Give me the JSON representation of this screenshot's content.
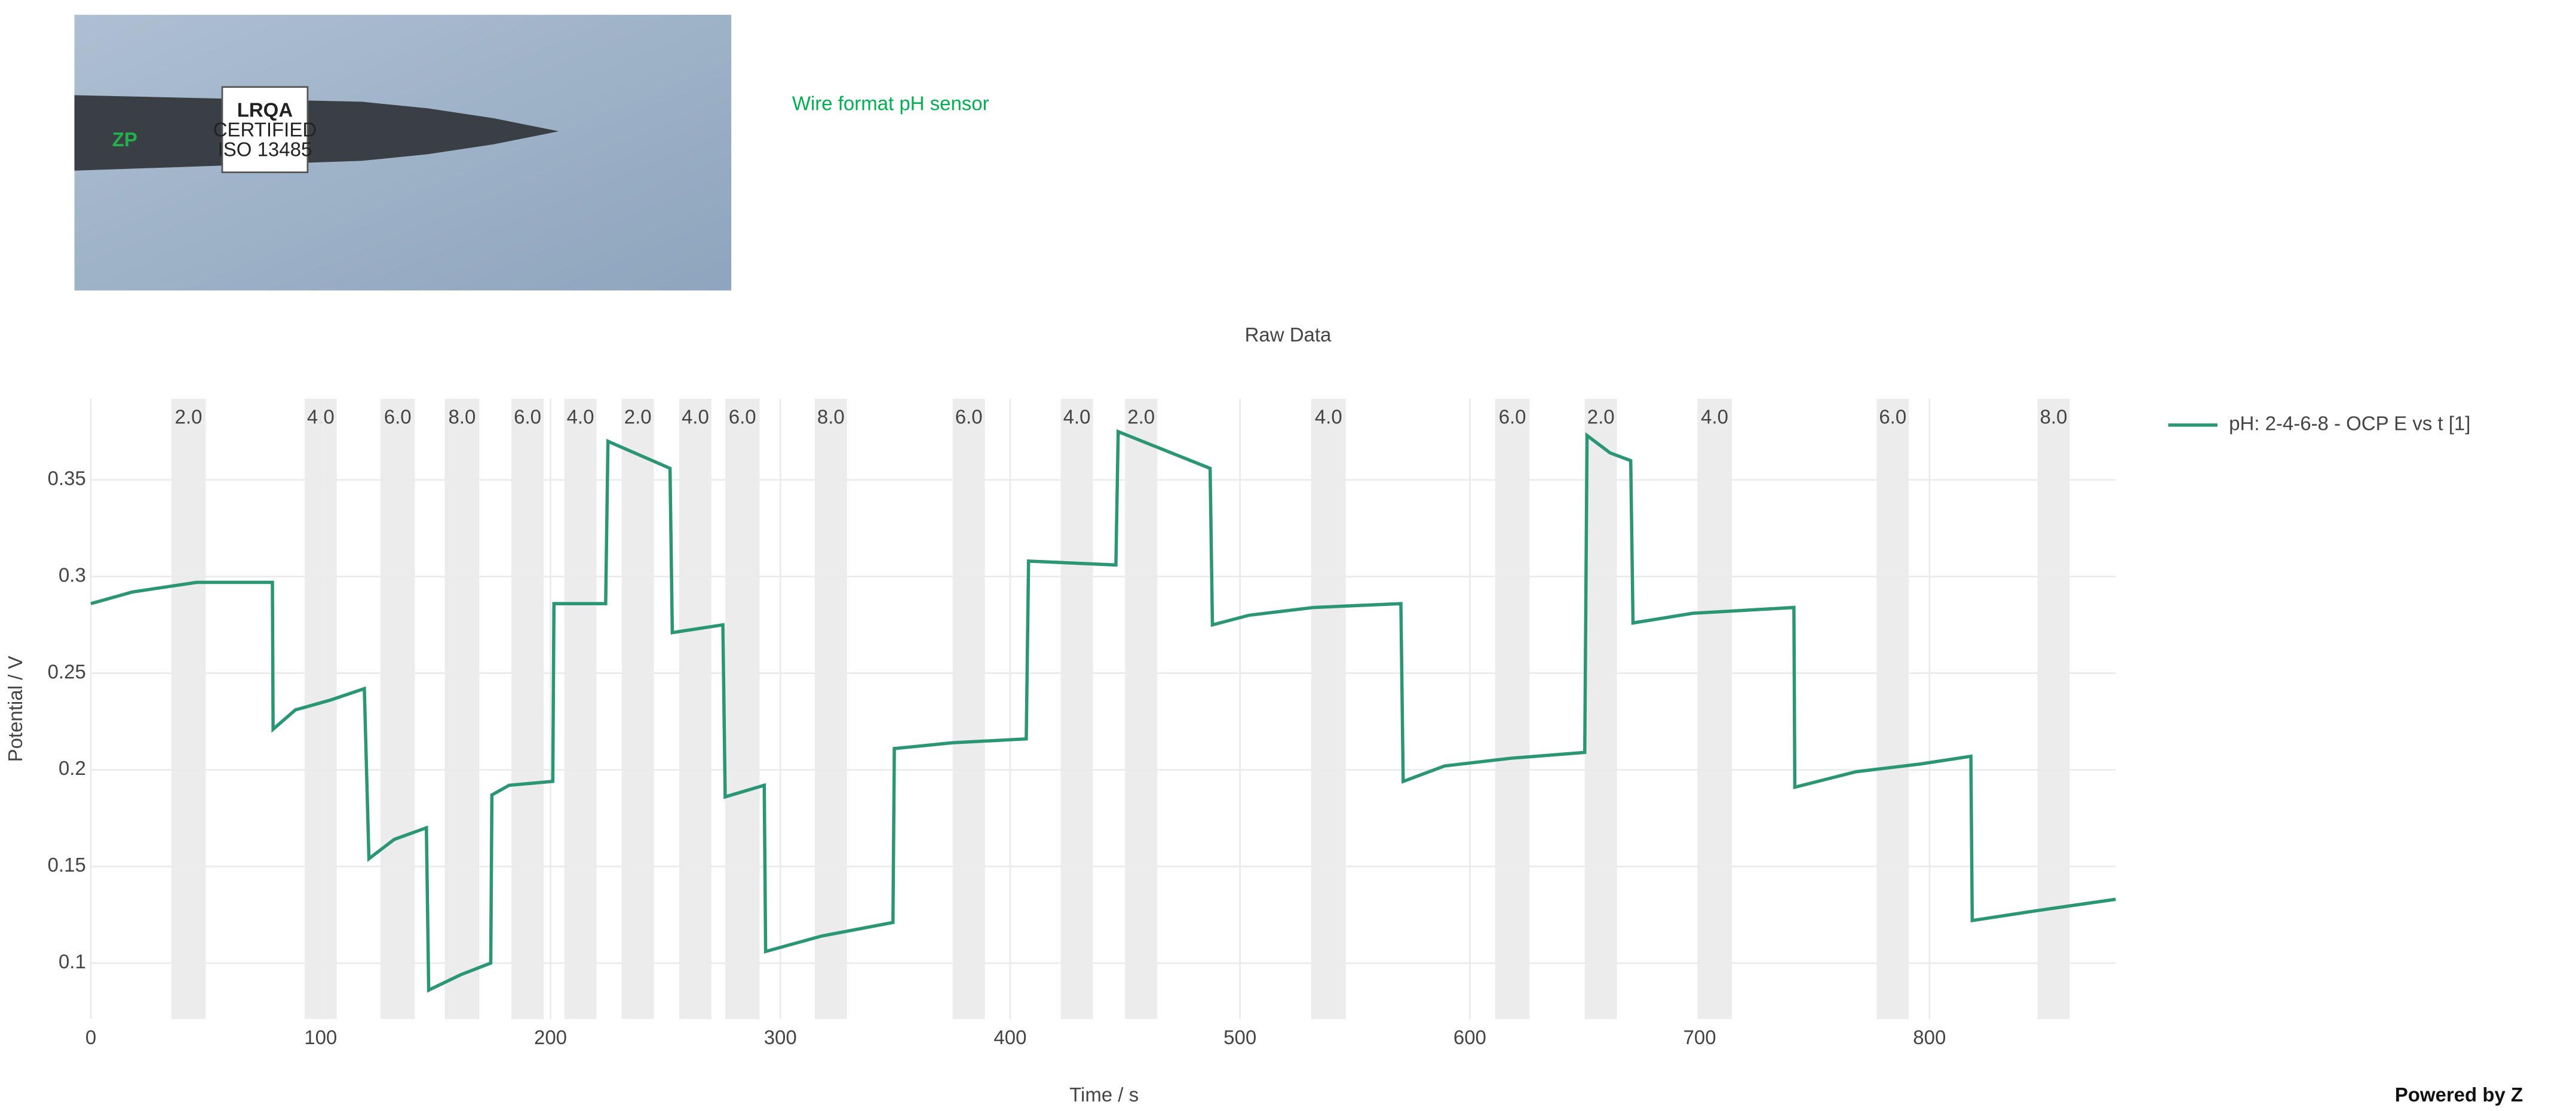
{
  "header": {
    "title": "Wire format pH sensor"
  },
  "logo": {
    "brand": "ZP",
    "cert": [
      "LRQA",
      "CERTIFIED",
      "ISO 13485"
    ]
  },
  "footer": "Powered by Z",
  "chart_data": {
    "type": "line",
    "title": "Raw Data",
    "x_label": "Time / s",
    "y_label": "Potential / V",
    "x": [
      0,
      18,
      46,
      79,
      79.3,
      89,
      104,
      119,
      121,
      132,
      146,
      147,
      161,
      174,
      174.5,
      182,
      201,
      201.5,
      224,
      225,
      252,
      253,
      275,
      276,
      293,
      293.6,
      318,
      349,
      349.6,
      375,
      407,
      408,
      446,
      447,
      487,
      488,
      504,
      532,
      570,
      571,
      589,
      618,
      650,
      651,
      661,
      670,
      671,
      697,
      741,
      741.4,
      768,
      796,
      818,
      818.6,
      846,
      881
    ],
    "series": [
      {
        "name": "pH: 2-4-6-8 - OCP E vs t [1]",
        "color": "#2a9673",
        "values": [
          0.286,
          0.292,
          0.297,
          0.297,
          0.221,
          0.231,
          0.236,
          0.242,
          0.154,
          0.164,
          0.17,
          0.086,
          0.094,
          0.1,
          0.187,
          0.192,
          0.194,
          0.286,
          0.286,
          0.37,
          0.356,
          0.271,
          0.275,
          0.186,
          0.192,
          0.106,
          0.114,
          0.121,
          0.211,
          0.214,
          0.216,
          0.308,
          0.306,
          0.375,
          0.356,
          0.275,
          0.28,
          0.284,
          0.286,
          0.194,
          0.202,
          0.206,
          0.209,
          0.373,
          0.364,
          0.36,
          0.276,
          0.281,
          0.284,
          0.191,
          0.199,
          0.203,
          0.207,
          0.122,
          0.127,
          0.133
        ]
      }
    ],
    "regions": [
      {
        "label": "2.0",
        "x": [
          35,
          50
        ]
      },
      {
        "label": "4.0",
        "x": [
          93,
          107
        ]
      },
      {
        "label": "6.0",
        "x": [
          126,
          141
        ]
      },
      {
        "label": "8.0",
        "x": [
          154,
          169
        ]
      },
      {
        "label": "6.0",
        "x": [
          183,
          197
        ]
      },
      {
        "label": "4.0",
        "x": [
          206,
          220
        ]
      },
      {
        "label": "2.0",
        "x": [
          231,
          245
        ]
      },
      {
        "label": "4.0",
        "x": [
          256,
          270
        ]
      },
      {
        "label": "6.0",
        "x": [
          276,
          291
        ]
      },
      {
        "label": "8.0",
        "x": [
          315,
          329
        ]
      },
      {
        "label": "6.0",
        "x": [
          375,
          389
        ]
      },
      {
        "label": "4.0",
        "x": [
          422,
          436
        ]
      },
      {
        "label": "2.0",
        "x": [
          450,
          464
        ]
      },
      {
        "label": "4.0",
        "x": [
          531,
          546
        ]
      },
      {
        "label": "6.0",
        "x": [
          611,
          626
        ]
      },
      {
        "label": "2.0",
        "x": [
          650,
          664
        ]
      },
      {
        "label": "4.0",
        "x": [
          699,
          714
        ]
      },
      {
        "label": "6.0",
        "x": [
          777,
          791
        ]
      },
      {
        "label": "8.0",
        "x": [
          847,
          861
        ]
      }
    ],
    "region_color": "#ececec",
    "xlim": [
      0,
      881
    ],
    "ylim": [
      0.071,
      0.392
    ],
    "xticks": [
      0,
      100,
      200,
      300,
      400,
      500,
      600,
      700,
      800
    ],
    "yticks": [
      0.1,
      0.15,
      0.2,
      0.25,
      0.3,
      0.35
    ],
    "grid": true,
    "legend": "right"
  }
}
